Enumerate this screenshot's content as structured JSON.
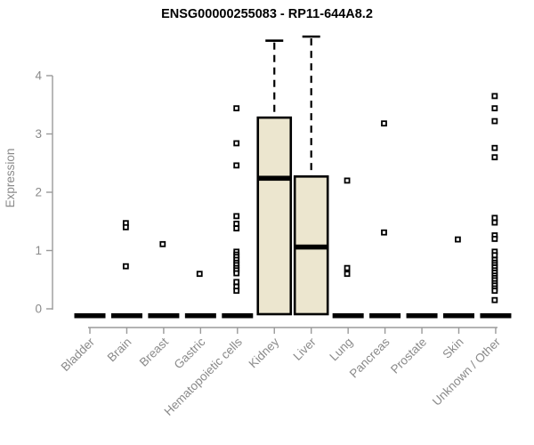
{
  "chart_data": {
    "type": "boxplot",
    "title": "ENSG00000255083 - RP11-644A8.2",
    "ylabel": "Expression",
    "xlabel": "",
    "ylim": [
      0,
      4.7
    ],
    "yticks": [
      0,
      1,
      2,
      3,
      4
    ],
    "grid": false,
    "legend": "none",
    "categories": [
      "Bladder",
      "Brain",
      "Breast",
      "Gastric",
      "Hematopoietic cells",
      "Kidney",
      "Liver",
      "Lung",
      "Pancreas",
      "Prostate",
      "Skin",
      "Unknown / Other"
    ],
    "boxes": [
      {
        "category": "Bladder",
        "q1": 0,
        "median": 0,
        "q3": 0,
        "whisker_low": 0,
        "whisker_high": 0,
        "points": []
      },
      {
        "category": "Brain",
        "q1": 0,
        "median": 0,
        "q3": 0,
        "whisker_low": 0,
        "whisker_high": 0,
        "points": [
          1.47,
          1.4,
          0.73
        ]
      },
      {
        "category": "Breast",
        "q1": 0,
        "median": 0,
        "q3": 0,
        "whisker_low": 0,
        "whisker_high": 0,
        "points": [
          1.11
        ]
      },
      {
        "category": "Gastric",
        "q1": 0,
        "median": 0,
        "q3": 0,
        "whisker_low": 0,
        "whisker_high": 0,
        "points": [
          0.6
        ]
      },
      {
        "category": "Hematopoietic cells",
        "q1": 0,
        "median": 0,
        "q3": 0,
        "whisker_low": 0,
        "whisker_high": 0,
        "points": [
          3.44,
          2.84,
          2.46,
          1.59,
          1.46,
          1.38,
          0.98,
          0.93,
          0.89,
          0.84,
          0.79,
          0.75,
          0.7,
          0.66,
          0.61,
          0.46,
          0.38,
          0.31
        ]
      },
      {
        "category": "Kidney",
        "q1": 0,
        "median": 2.24,
        "q3": 3.28,
        "whisker_low": 0,
        "whisker_high": 4.6,
        "points": []
      },
      {
        "category": "Liver",
        "q1": 0,
        "median": 1.06,
        "q3": 2.27,
        "whisker_low": 0,
        "whisker_high": 4.67,
        "points": []
      },
      {
        "category": "Lung",
        "q1": 0,
        "median": 0,
        "q3": 0,
        "whisker_low": 0,
        "whisker_high": 0,
        "points": [
          2.2,
          0.7,
          0.6
        ]
      },
      {
        "category": "Pancreas",
        "q1": 0,
        "median": 0,
        "q3": 0,
        "whisker_low": 0,
        "whisker_high": 0,
        "points": [
          3.18,
          1.31
        ]
      },
      {
        "category": "Prostate",
        "q1": 0,
        "median": 0,
        "q3": 0,
        "whisker_low": 0,
        "whisker_high": 0,
        "points": []
      },
      {
        "category": "Skin",
        "q1": 0,
        "median": 0,
        "q3": 0,
        "whisker_low": 0,
        "whisker_high": 0,
        "points": [
          1.19
        ]
      },
      {
        "category": "Unknown / Other",
        "q1": 0,
        "median": 0,
        "q3": 0,
        "whisker_low": 0,
        "whisker_high": 0,
        "points": [
          3.65,
          3.44,
          3.22,
          2.76,
          2.6,
          1.56,
          1.48,
          1.26,
          1.2,
          0.98,
          0.92,
          0.84,
          0.79,
          0.75,
          0.71,
          0.66,
          0.62,
          0.57,
          0.53,
          0.49,
          0.44,
          0.4,
          0.35,
          0.31,
          0.15
        ]
      }
    ],
    "colors": {
      "box_fill": "#ece6cf",
      "box_stroke": "#000000",
      "median": "#000000",
      "whisker": "#000000",
      "point_stroke": "#000000",
      "point_fill": "#ffffff",
      "axis": "#9a9a9a",
      "tick_label": "#8a8a8a",
      "title": "#000000"
    }
  }
}
